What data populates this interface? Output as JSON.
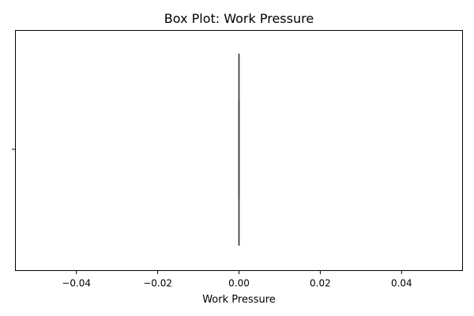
{
  "chart_data": {
    "type": "box",
    "title": "Box Plot: Work Pressure",
    "xlabel": "Work Pressure",
    "ylabel": "",
    "xlim": [
      -0.055,
      0.055
    ],
    "xticks": [
      -0.04,
      -0.02,
      0.0,
      0.02,
      0.04
    ],
    "xtick_labels": [
      "−0.04",
      "−0.02",
      "0.00",
      "0.02",
      "0.04"
    ],
    "orientation": "horizontal",
    "grid": false,
    "series": [
      {
        "min": 0.0,
        "q1": 0.0,
        "median": 0.0,
        "q3": 0.0,
        "max": 0.0
      }
    ],
    "colors": {
      "axes": "#000000",
      "box": "#3f3f3f"
    }
  }
}
